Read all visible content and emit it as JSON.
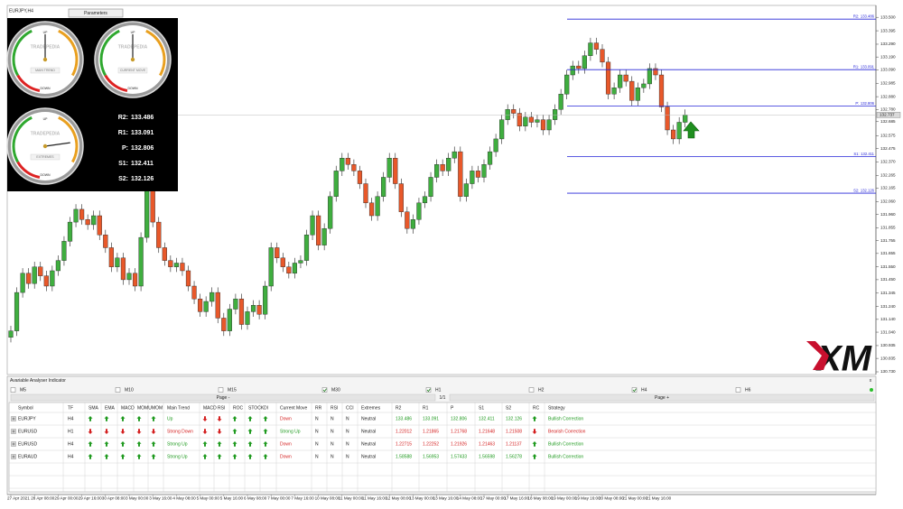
{
  "chart_data": {
    "type": "candlestick",
    "symbol_label": "EURJPY,H4",
    "categories": [
      "27 Apr 2021",
      null,
      null,
      null,
      "28 Apr 08:00",
      null,
      null,
      null,
      "29 Apr 00:00",
      null,
      null,
      null,
      "29 Apr 16:00",
      null,
      null,
      null,
      "30 Apr 08:00",
      null,
      null,
      null,
      "3 May 00:00",
      null,
      null,
      null,
      "3 May 16:00",
      null,
      null,
      null,
      "4 May 08:00",
      null,
      null,
      null,
      "5 May 00:00",
      null,
      null,
      null,
      "5 May 16:00",
      null,
      null,
      null,
      "6 May 08:00",
      null,
      null,
      null,
      "7 May 00:00",
      null,
      null,
      null,
      "7 May 16:00",
      null,
      null,
      null,
      "10 May 08:00",
      null,
      null,
      null,
      "11 May 00:00",
      null,
      null,
      null,
      "11 May 16:00",
      null,
      null,
      null,
      "12 May 08:00",
      null,
      null,
      null,
      "13 May 00:00",
      null,
      null,
      null,
      "13 May 16:00",
      null,
      null,
      null,
      "14 May 08:00",
      null,
      null,
      null,
      "17 May 00:00",
      null,
      null,
      null,
      "17 May 16:00",
      null,
      null,
      null,
      "18 May 08:00",
      null,
      null,
      null,
      "19 May 00:00",
      null,
      null,
      null,
      "19 May 16:00",
      null,
      null,
      null,
      "20 May 08:00",
      null,
      null,
      null,
      "21 May 00:00",
      null,
      null,
      null,
      "21 May 16:00",
      null,
      null,
      null,
      null,
      null,
      null
    ],
    "open": [
      131.0,
      131.05,
      131.35,
      131.5,
      131.42,
      131.55,
      131.48,
      131.4,
      131.52,
      131.6,
      131.75,
      131.9,
      132.0,
      131.92,
      131.88,
      131.95,
      131.8,
      131.7,
      131.55,
      131.62,
      131.45,
      131.5,
      131.4,
      131.78,
      132.15,
      131.9,
      131.7,
      131.6,
      131.55,
      131.58,
      131.52,
      131.4,
      131.3,
      131.2,
      131.28,
      131.35,
      131.15,
      131.05,
      131.22,
      131.3,
      131.1,
      131.2,
      131.25,
      131.18,
      131.4,
      131.7,
      131.62,
      131.55,
      131.5,
      131.58,
      131.6,
      131.8,
      131.95,
      131.72,
      131.85,
      132.1,
      132.3,
      132.4,
      132.35,
      132.3,
      132.2,
      132.05,
      131.95,
      132.1,
      132.25,
      132.4,
      132.2,
      131.98,
      131.85,
      131.92,
      132.05,
      132.1,
      132.25,
      132.35,
      132.3,
      132.4,
      132.45,
      132.1,
      132.2,
      132.3,
      132.25,
      132.35,
      132.45,
      132.55,
      132.7,
      132.78,
      132.75,
      132.65,
      132.72,
      132.68,
      132.7,
      132.62,
      132.7,
      132.78,
      132.9,
      133.05,
      133.12,
      133.1,
      133.2,
      133.3,
      133.25,
      133.15,
      132.9,
      132.95,
      133.05,
      133.0,
      132.85,
      132.95,
      132.98,
      133.1,
      133.05,
      132.8,
      132.62,
      132.55,
      132.68
    ],
    "high": [
      131.09,
      131.39,
      131.54,
      131.54,
      131.59,
      131.59,
      131.52,
      131.56,
      131.64,
      131.79,
      131.94,
      132.04,
      132.04,
      131.96,
      131.99,
      131.99,
      131.84,
      131.74,
      131.66,
      131.66,
      131.54,
      131.54,
      131.82,
      132.19,
      132.19,
      131.94,
      131.74,
      131.64,
      131.62,
      131.62,
      131.56,
      131.44,
      131.34,
      131.32,
      131.39,
      131.39,
      131.19,
      131.26,
      131.34,
      131.34,
      131.24,
      131.29,
      131.29,
      131.44,
      131.74,
      131.74,
      131.66,
      131.59,
      131.62,
      131.64,
      131.84,
      131.99,
      131.99,
      131.89,
      132.14,
      132.34,
      132.44,
      132.44,
      132.39,
      132.34,
      132.24,
      132.09,
      132.14,
      132.29,
      132.44,
      132.44,
      132.24,
      132.02,
      131.96,
      132.09,
      132.14,
      132.29,
      132.39,
      132.39,
      132.44,
      132.49,
      132.49,
      132.24,
      132.34,
      132.34,
      132.39,
      132.49,
      132.59,
      132.74,
      132.82,
      132.82,
      132.79,
      132.76,
      132.76,
      132.74,
      132.74,
      132.74,
      132.82,
      132.94,
      133.09,
      133.16,
      133.16,
      133.24,
      133.34,
      133.34,
      133.29,
      133.19,
      132.99,
      133.09,
      133.09,
      133.04,
      132.99,
      133.02,
      133.14,
      133.14,
      133.09,
      132.84,
      132.66,
      132.72,
      132.78
    ],
    "low": [
      130.96,
      131.01,
      131.31,
      131.38,
      131.38,
      131.44,
      131.36,
      131.36,
      131.48,
      131.56,
      131.71,
      131.86,
      131.88,
      131.84,
      131.84,
      131.76,
      131.66,
      131.51,
      131.51,
      131.41,
      131.41,
      131.36,
      131.36,
      131.74,
      131.86,
      131.66,
      131.56,
      131.51,
      131.51,
      131.48,
      131.36,
      131.26,
      131.16,
      131.16,
      131.24,
      131.11,
      131.01,
      131.01,
      131.18,
      131.06,
      131.06,
      131.16,
      131.14,
      131.14,
      131.36,
      131.58,
      131.51,
      131.46,
      131.46,
      131.54,
      131.56,
      131.76,
      131.68,
      131.68,
      131.81,
      132.06,
      132.26,
      132.31,
      132.26,
      132.16,
      132.01,
      131.91,
      131.91,
      132.06,
      132.21,
      132.16,
      131.94,
      131.81,
      131.81,
      131.88,
      132.01,
      132.06,
      132.21,
      132.26,
      132.26,
      132.36,
      132.06,
      132.06,
      132.16,
      132.21,
      132.21,
      132.31,
      132.41,
      132.51,
      132.66,
      132.71,
      132.61,
      132.61,
      132.64,
      132.64,
      132.58,
      132.58,
      132.66,
      132.74,
      132.86,
      133.01,
      133.06,
      133.06,
      133.16,
      133.21,
      133.11,
      132.86,
      132.86,
      132.91,
      132.96,
      132.81,
      132.81,
      132.91,
      132.94,
      133.01,
      132.76,
      132.58,
      132.51,
      132.51,
      132.64
    ],
    "close": [
      131.05,
      131.35,
      131.5,
      131.42,
      131.55,
      131.48,
      131.4,
      131.52,
      131.6,
      131.75,
      131.9,
      132.0,
      131.92,
      131.88,
      131.95,
      131.8,
      131.7,
      131.55,
      131.62,
      131.45,
      131.5,
      131.4,
      131.78,
      132.15,
      131.9,
      131.7,
      131.6,
      131.55,
      131.58,
      131.52,
      131.4,
      131.3,
      131.2,
      131.28,
      131.35,
      131.15,
      131.05,
      131.22,
      131.3,
      131.1,
      131.2,
      131.25,
      131.18,
      131.4,
      131.7,
      131.62,
      131.55,
      131.5,
      131.58,
      131.6,
      131.8,
      131.95,
      131.72,
      131.85,
      132.1,
      132.3,
      132.4,
      132.35,
      132.3,
      132.2,
      132.05,
      131.95,
      132.1,
      132.25,
      132.4,
      132.2,
      131.98,
      131.85,
      131.92,
      132.05,
      132.1,
      132.25,
      132.35,
      132.3,
      132.4,
      132.45,
      132.1,
      132.2,
      132.3,
      132.25,
      132.35,
      132.45,
      132.55,
      132.7,
      132.78,
      132.75,
      132.65,
      132.72,
      132.68,
      132.7,
      132.62,
      132.7,
      132.78,
      132.9,
      133.05,
      133.12,
      133.1,
      133.2,
      133.3,
      133.25,
      133.15,
      132.9,
      132.95,
      133.05,
      133.0,
      132.85,
      132.95,
      132.98,
      133.1,
      133.05,
      132.8,
      132.62,
      132.55,
      132.68,
      132.737
    ],
    "up_color": "#3fae3f",
    "down_color": "#e8582a",
    "ylim": [
      130.716,
      133.579
    ],
    "yticks": [
      {
        "value": 133.5,
        "label": "133.500"
      },
      133.395,
      {
        "value": 133.29,
        "label": "133.290"
      },
      {
        "value": 133.19,
        "label": "133.190"
      },
      {
        "value": 133.09,
        "label": "133.090"
      },
      132.985,
      {
        "value": 132.88,
        "label": "132.880"
      },
      {
        "value": 132.78,
        "label": "132.780"
      },
      132.685,
      132.575,
      132.475,
      {
        "value": 132.37,
        "label": "132.370"
      },
      132.265,
      132.165,
      {
        "value": 132.06,
        "label": "132.060"
      },
      {
        "value": 131.96,
        "label": "131.960"
      },
      131.855,
      131.755,
      131.655,
      {
        "value": 131.55,
        "label": "131.550"
      },
      {
        "value": 131.45,
        "label": "131.450"
      },
      131.345,
      {
        "value": 131.24,
        "label": "131.240"
      },
      {
        "value": 131.14,
        "label": "131.140"
      },
      {
        "value": 131.04,
        "label": "131.040"
      },
      130.935,
      130.835,
      {
        "value": 130.73,
        "label": "130.730"
      }
    ],
    "pivots": [
      {
        "label": "R2:",
        "value": 133.486
      },
      {
        "label": "R1:",
        "value": 133.091
      },
      {
        "label": "P:",
        "value": 132.806
      },
      {
        "label": "S1:",
        "value": 132.411
      },
      {
        "label": "S2:",
        "value": 132.126
      }
    ],
    "pivot_color": "#2727d8"
  },
  "toolbar": {
    "button": "Parameters"
  },
  "gauge_panel": {
    "brand": "TRADEPEDIA",
    "gauges": [
      {
        "title": "MAIN TREND",
        "up": "UP",
        "down": "DOWN"
      },
      {
        "title": "CURRENT MOVE",
        "up": "UP",
        "down": "DOWN"
      },
      {
        "title": "EXTREMES",
        "up": "UP",
        "down": "DOWN"
      }
    ]
  },
  "logo": "XM",
  "indicator": {
    "title": "Avariable Analyser Indicator",
    "timeframes": [
      {
        "label": "M5",
        "checked": false
      },
      {
        "label": "M10",
        "checked": false
      },
      {
        "label": "M15",
        "checked": false
      },
      {
        "label": "M30",
        "checked": true
      },
      {
        "label": "H1",
        "checked": true
      },
      {
        "label": "H2",
        "checked": false
      },
      {
        "label": "H4",
        "checked": true
      },
      {
        "label": "H6",
        "checked": false
      }
    ],
    "page_prev": "Page -",
    "page_info": "1/1",
    "page_next": "Page +",
    "headers": [
      "Symbol",
      "TF",
      "SMA",
      "EMA",
      "MACD",
      "MOMU",
      "MOM",
      "Main Trend",
      "MACD",
      "RSI",
      "ROC",
      "STOCK",
      "DI",
      "Current Move",
      "RR",
      "RSI",
      "CCI",
      "Extremes",
      "R2",
      "R1",
      "P",
      "S1",
      "S2",
      "RC",
      "Strategy"
    ],
    "rows": [
      [
        "EURJPY",
        "H4",
        {
          "arrow": "up"
        },
        {
          "arrow": "up"
        },
        {
          "arrow": "up"
        },
        {
          "arrow": "up"
        },
        {
          "arrow": "up"
        },
        {
          "text": "Up",
          "color": "#1f9a1f"
        },
        {
          "arrow": "down"
        },
        {
          "arrow": "down"
        },
        {
          "arrow": "up"
        },
        {
          "arrow": "up"
        },
        {
          "arrow": "up"
        },
        {
          "text": "Down",
          "color": "#d42020"
        },
        "N",
        "N",
        "N",
        "Neutral",
        {
          "text": 133.486,
          "color": "#1f9a1f"
        },
        {
          "text": 133.091,
          "color": "#1f9a1f"
        },
        {
          "text": 132.806,
          "color": "#1f9a1f"
        },
        {
          "text": 132.411,
          "color": "#1f9a1f"
        },
        {
          "text": 132.126,
          "color": "#1f9a1f"
        },
        {
          "arrow": "up"
        },
        {
          "text": "Bullish Correction",
          "color": "#1f9a1f"
        }
      ],
      [
        "EURUSD",
        "H1",
        {
          "arrow": "down"
        },
        {
          "arrow": "down"
        },
        {
          "arrow": "down"
        },
        {
          "arrow": "down"
        },
        {
          "arrow": "down"
        },
        {
          "text": "Strong Down",
          "color": "#d42020"
        },
        {
          "arrow": "down"
        },
        {
          "arrow": "down"
        },
        {
          "arrow": "up"
        },
        {
          "arrow": "up"
        },
        {
          "arrow": "up"
        },
        {
          "text": "Strong Up",
          "color": "#1f9a1f"
        },
        "N",
        "N",
        "N",
        "Neutral",
        {
          "text": 1.22012,
          "color": "#d42020"
        },
        {
          "text": 1.21865,
          "color": "#d42020"
        },
        {
          "text": 1.21768,
          "color": "#d42020"
        },
        {
          "text": 1.21648,
          "color": "#d42020"
        },
        {
          "text": 1.21508,
          "color": "#d42020"
        },
        {
          "arrow": "down"
        },
        {
          "text": "Bearish Correction",
          "color": "#d42020"
        }
      ],
      [
        "EURUSD",
        "H4",
        {
          "arrow": "up"
        },
        {
          "arrow": "up"
        },
        {
          "arrow": "up"
        },
        {
          "arrow": "up"
        },
        {
          "arrow": "up"
        },
        {
          "text": "Strong Up",
          "color": "#1f9a1f"
        },
        {
          "arrow": "up"
        },
        {
          "arrow": "up"
        },
        {
          "arrow": "up"
        },
        {
          "arrow": "up"
        },
        {
          "arrow": "up"
        },
        {
          "text": "Down",
          "color": "#d42020"
        },
        "N",
        "N",
        "N",
        "Neutral",
        {
          "text": 1.22715,
          "color": "#d42020"
        },
        {
          "text": 1.22252,
          "color": "#d42020"
        },
        {
          "text": 1.21926,
          "color": "#d42020"
        },
        {
          "text": 1.21463,
          "color": "#d42020"
        },
        {
          "text": 1.21137,
          "color": "#d42020"
        },
        {
          "arrow": "up"
        },
        {
          "text": "Bullish Correction",
          "color": "#1f9a1f"
        }
      ],
      [
        "EURAUD",
        "H4",
        {
          "arrow": "up"
        },
        {
          "arrow": "up"
        },
        {
          "arrow": "up"
        },
        {
          "arrow": "up"
        },
        {
          "arrow": "up"
        },
        {
          "text": "Strong Up",
          "color": "#1f9a1f"
        },
        {
          "arrow": "up"
        },
        {
          "arrow": "up"
        },
        {
          "arrow": "up"
        },
        {
          "arrow": "up"
        },
        {
          "arrow": "up"
        },
        {
          "text": "Down",
          "color": "#d42020"
        },
        "N",
        "N",
        "N",
        "Neutral",
        {
          "text": 1.58588,
          "color": "#1f9a1f"
        },
        {
          "text": 1.56953,
          "color": "#1f9a1f"
        },
        {
          "text": 1.57433,
          "color": "#1f9a1f"
        },
        {
          "text": 1.56598,
          "color": "#1f9a1f"
        },
        {
          "text": 1.56278,
          "color": "#1f9a1f"
        },
        {
          "arrow": "up"
        },
        {
          "text": "Bullish Correction",
          "color": "#1f9a1f"
        }
      ]
    ]
  }
}
